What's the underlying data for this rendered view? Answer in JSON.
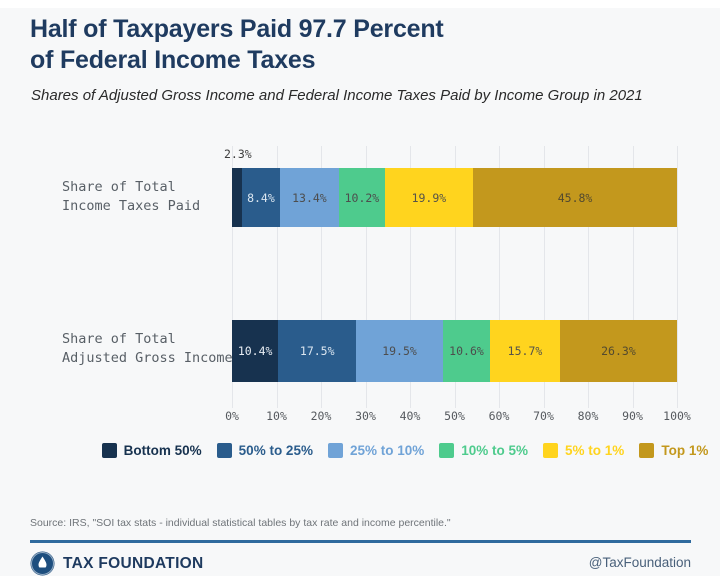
{
  "header": {
    "title_line1": "Half of Taxpayers Paid 97.7 Percent",
    "title_line2": "of Federal Income Taxes",
    "subtitle": "Shares of Adjusted Gross Income and Federal Income Taxes Paid by Income Group in 2021"
  },
  "chart_data": {
    "type": "bar",
    "orientation": "horizontal",
    "stacked": true,
    "title": "Half of Taxpayers Paid 97.7 Percent of Federal Income Taxes",
    "subtitle": "Shares of Adjusted Gross Income and Federal Income Taxes Paid by Income Group in 2021",
    "categories": [
      "Share of Total Income Taxes Paid",
      "Share of Total Adjusted Gross Income"
    ],
    "row_labels": [
      [
        "Share of Total",
        "Income Taxes Paid"
      ],
      [
        "Share of Total",
        "Adjusted Gross Income"
      ]
    ],
    "series": [
      {
        "name": "Bottom 50%",
        "color": "#17324f",
        "label_color": "#e9eef4",
        "values": [
          2.3,
          10.4
        ]
      },
      {
        "name": "50% to 25%",
        "color": "#2a5c8c",
        "label_color": "#dbe6f0",
        "values": [
          8.4,
          17.5
        ]
      },
      {
        "name": "25% to 10%",
        "color": "#70a3d7",
        "label_color": "#4d4d4d",
        "values": [
          13.4,
          19.5
        ]
      },
      {
        "name": "10% to 5%",
        "color": "#4ecb8d",
        "label_color": "#4d4d4d",
        "values": [
          10.2,
          10.6
        ]
      },
      {
        "name": "5% to 1%",
        "color": "#ffd41e",
        "label_color": "#55534a",
        "values": [
          19.9,
          15.7
        ]
      },
      {
        "name": "Top 1%",
        "color": "#c3981d",
        "label_color": "#534a2f",
        "values": [
          45.8,
          26.3
        ]
      }
    ],
    "callout_label": "2.3%",
    "x_ticks": [
      "0%",
      "10%",
      "20%",
      "30%",
      "40%",
      "50%",
      "60%",
      "70%",
      "80%",
      "90%",
      "100%"
    ],
    "xlim": [
      0,
      100
    ],
    "grid": true,
    "legend_position": "bottom"
  },
  "footer": {
    "source": "Source: IRS, \"SOI tax stats - individual statistical tables by tax rate and income percentile.\"",
    "brand": "TAX FOUNDATION",
    "handle": "@TaxFoundation"
  }
}
